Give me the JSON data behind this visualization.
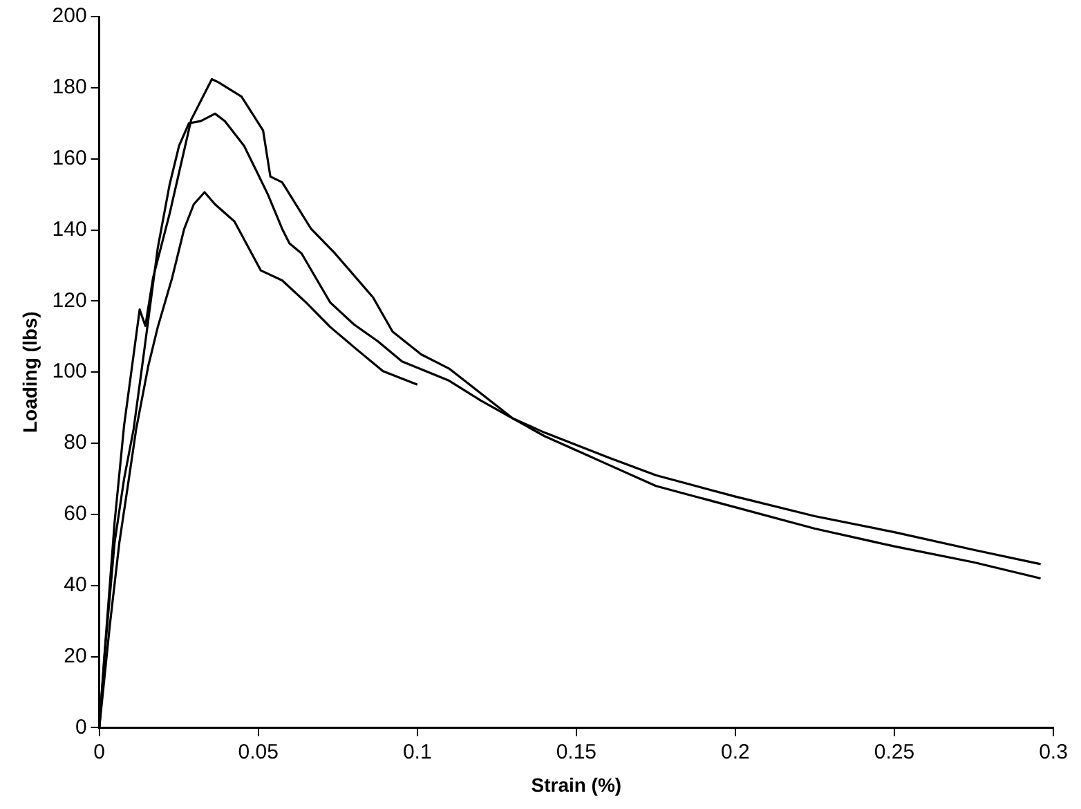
{
  "chart_data": {
    "type": "line",
    "xlabel": "Strain (%)",
    "ylabel": "Loading (lbs)",
    "xlim": [
      0,
      0.3
    ],
    "xticks": [
      0,
      0.05,
      0.1,
      0.15,
      0.2,
      0.25,
      0.3
    ],
    "ylim": [
      0,
      200
    ],
    "yticks": [
      0,
      20,
      40,
      60,
      80,
      100,
      120,
      140,
      160,
      180,
      200
    ],
    "grid": false,
    "legend": false,
    "marker": "none",
    "line_style": "solid",
    "series": [
      {
        "color": "#000000",
        "x": [
          0,
          0.0015,
          0.0048,
          0.0078,
          0.0127,
          0.0145,
          0.0169,
          0.0221,
          0.0289,
          0.0354,
          0.0375,
          0.0447,
          0.0515,
          0.0538,
          0.0575,
          0.0666,
          0.0741,
          0.0861,
          0.0922,
          0.1012,
          0.11,
          0.12,
          0.13,
          0.14,
          0.15,
          0.16,
          0.175,
          0.2,
          0.225,
          0.25,
          0.275,
          0.296
        ],
        "values": [
          0,
          19,
          57.6,
          85,
          117.6,
          113,
          126.5,
          144.5,
          171,
          182.4,
          181.5,
          177.5,
          168,
          155,
          153.4,
          140.3,
          133.4,
          121,
          111.4,
          105,
          101,
          94,
          87,
          82,
          78,
          74,
          68,
          62,
          56,
          51,
          46.5,
          42
        ]
      },
      {
        "color": "#000000",
        "x": [
          0,
          0.0018,
          0.0048,
          0.0078,
          0.0108,
          0.0139,
          0.0184,
          0.0221,
          0.0251,
          0.0282,
          0.0319,
          0.0364,
          0.0395,
          0.0455,
          0.05,
          0.053,
          0.0575,
          0.0598,
          0.0636,
          0.0681,
          0.0726,
          0.0801,
          0.0877,
          0.0952,
          0.11,
          0.12,
          0.13,
          0.14,
          0.15,
          0.16,
          0.175,
          0.2,
          0.225,
          0.25,
          0.275,
          0.296
        ],
        "values": [
          0,
          21.8,
          52,
          70,
          84,
          104.5,
          135,
          152.7,
          163.7,
          170,
          170.6,
          172.7,
          170.6,
          163.7,
          155.5,
          150,
          140.3,
          136.2,
          133.4,
          126.5,
          119.6,
          113.4,
          108.6,
          103,
          97.6,
          92,
          87,
          83,
          79.5,
          76,
          71,
          65,
          59.5,
          55,
          50,
          46
        ]
      },
      {
        "color": "#000000",
        "x": [
          0,
          0.0033,
          0.0063,
          0.0093,
          0.0116,
          0.0154,
          0.0184,
          0.0229,
          0.0267,
          0.0297,
          0.0331,
          0.0364,
          0.0425,
          0.0508,
          0.0575,
          0.065,
          0.0726,
          0.0816,
          0.0892,
          0.1
        ],
        "values": [
          0,
          28.7,
          52,
          70,
          84,
          101.7,
          112.7,
          126.5,
          140.3,
          147.2,
          150.6,
          147.2,
          142.4,
          128.6,
          125.8,
          119.6,
          112.7,
          105.9,
          100.3,
          96.5
        ]
      }
    ]
  }
}
